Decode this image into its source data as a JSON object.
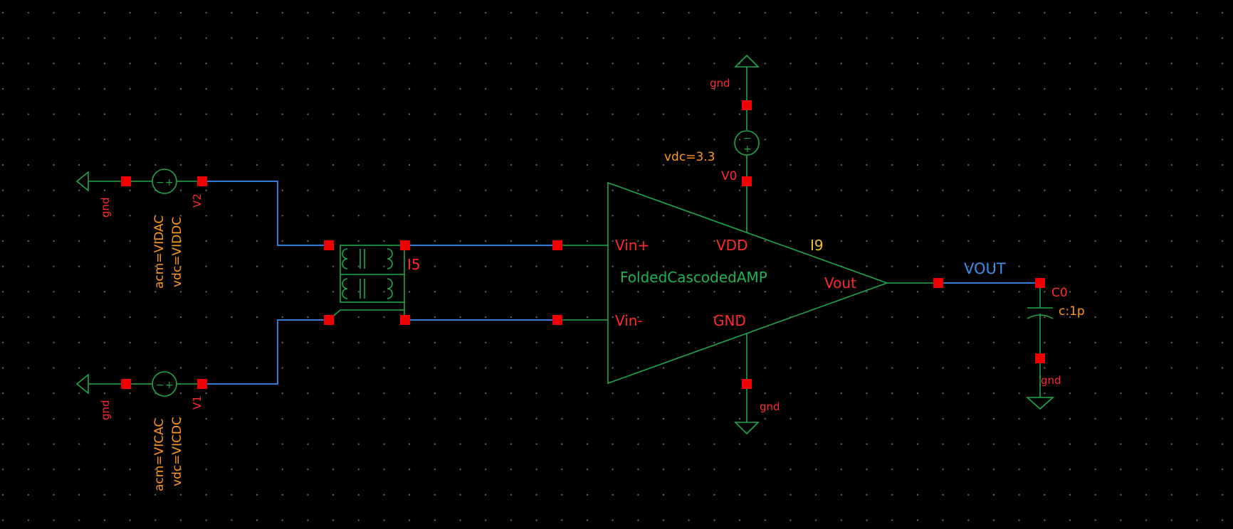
{
  "schematic": {
    "amplifier": {
      "name": "FoldedCascodedAMP",
      "instance": "I9",
      "pins": {
        "vinp": "Vin+",
        "vinn": "Vin-",
        "vdd": "VDD",
        "gnd": "GND",
        "vout": "Vout"
      }
    },
    "balun": {
      "instance": "I5"
    },
    "supply": {
      "instance": "V0",
      "param": "vdc=3.3",
      "gnd_label": "gnd"
    },
    "source_v2": {
      "instance": "V2",
      "acm": "acm=VIDAC",
      "vdc": "vdc=VIDDC",
      "gnd_label": "gnd"
    },
    "source_v1": {
      "instance": "V1",
      "acm": "acm=VICAC",
      "vdc": "vdc=VICDC",
      "gnd_label": "gnd"
    },
    "amp_gnd_label": "gnd",
    "output_net": "VOUT",
    "load_cap": {
      "instance": "C0",
      "param": "c:1p",
      "gnd_label": "gnd"
    }
  },
  "colors": {
    "background": "#000000",
    "wire": "#2f7bd8",
    "symbol": "#1fa848",
    "pin": "#f00000",
    "instance_label": "#ff2a2a",
    "param_label": "#ff9a1a",
    "pin_label": "#f0c020",
    "net_label": "#3a8fe8"
  }
}
